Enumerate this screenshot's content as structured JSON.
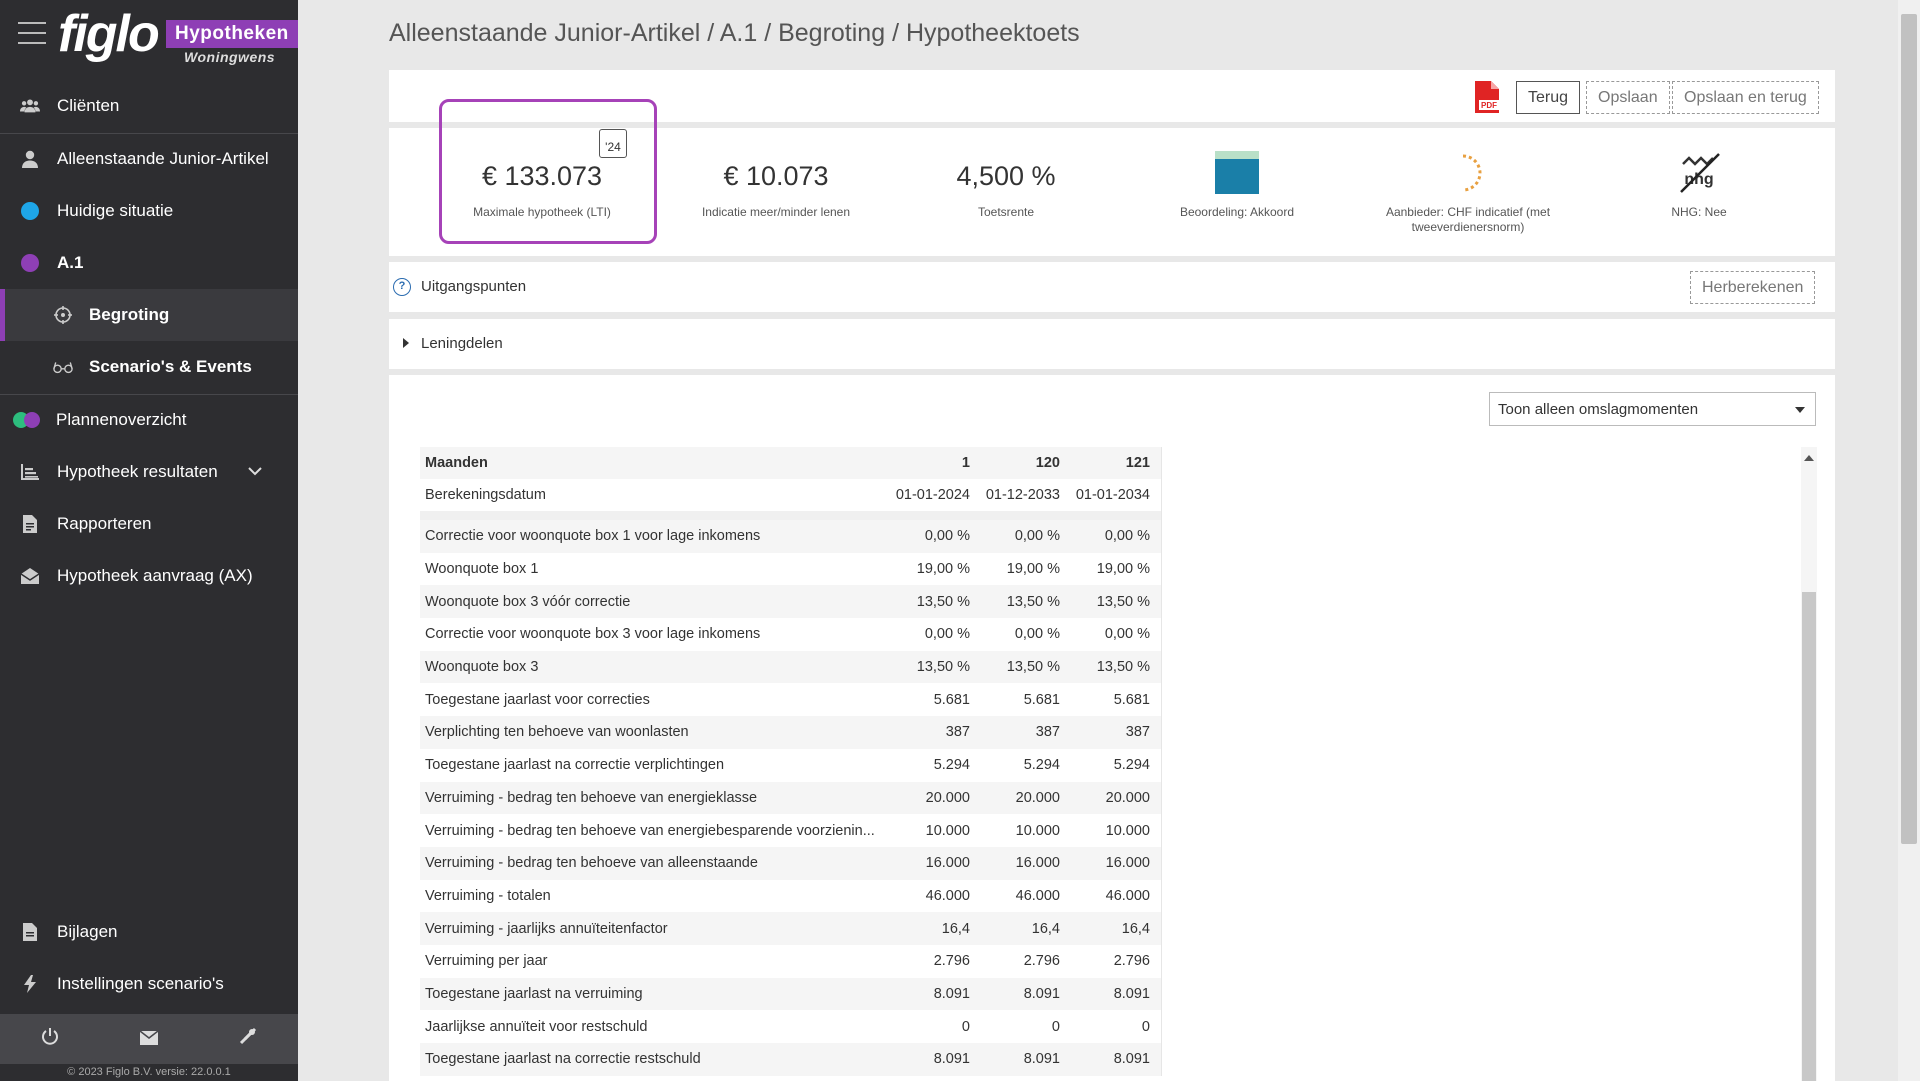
{
  "brand": {
    "logo": "figlo",
    "badge": "Hypotheken",
    "sub": "Woningwens"
  },
  "sidebar": {
    "items": [
      {
        "label": "Cliënten"
      },
      {
        "label": "Alleenstaande Junior-Artikel"
      },
      {
        "label": "Huidige situatie"
      },
      {
        "label": "A.1"
      },
      {
        "label": "Begroting"
      },
      {
        "label": "Scenario's & Events"
      },
      {
        "label": "Plannenoverzicht"
      },
      {
        "label": "Hypotheek resultaten"
      },
      {
        "label": "Rapporteren"
      },
      {
        "label": "Hypotheek aanvraag (AX)"
      },
      {
        "label": "Bijlagen"
      },
      {
        "label": "Instellingen scenario's"
      }
    ],
    "copyright": "© 2023 Figlo B.V. versie: 22.0.0.1"
  },
  "header": {
    "breadcrumb": "Alleenstaande Junior-Artikel / A.1 / Begroting / Hypotheektoets"
  },
  "toolbar": {
    "pdf": "PDF",
    "back_label": "Terug",
    "save_label": "Opslaan",
    "save_back_label": "Opslaan en terug"
  },
  "kpis": {
    "max": {
      "value": "€ 133.073",
      "label": "Maximale hypotheek (LTI)",
      "calendar": "'24"
    },
    "indicatie": {
      "value": "€ 10.073",
      "label": "Indicatie meer/minder lenen"
    },
    "toetsrente": {
      "value": "4,500 %",
      "label": "Toetsrente"
    },
    "beoordeling": {
      "label": "Beoordeling: Akkoord"
    },
    "aanbieder": {
      "label": "Aanbieder: CHF indicatief (met tweeverdienersnorm)"
    },
    "nhg": {
      "label": "NHG: Nee",
      "mark": "nhg"
    }
  },
  "uitgangspunten": {
    "label": "Uitgangspunten",
    "recalc_label": "Herberekenen"
  },
  "leningdelen": {
    "label": "Leningdelen"
  },
  "filter": {
    "selected": "Toon alleen omslagmomenten"
  },
  "table": {
    "header": {
      "label": "Maanden",
      "cols": [
        "1",
        "120",
        "121"
      ]
    },
    "dates": {
      "label": "Berekeningsdatum",
      "cols": [
        "01-01-2024",
        "01-12-2033",
        "01-01-2034"
      ]
    },
    "rows": [
      {
        "label": "Correctie voor woonquote box 1 voor lage inkomens",
        "v": [
          "0,00 %",
          "0,00 %",
          "0,00 %"
        ]
      },
      {
        "label": "Woonquote box 1",
        "v": [
          "19,00 %",
          "19,00 %",
          "19,00 %"
        ]
      },
      {
        "label": "Woonquote box 3 vóór correctie",
        "v": [
          "13,50 %",
          "13,50 %",
          "13,50 %"
        ]
      },
      {
        "label": "Correctie voor woonquote box 3 voor lage inkomens",
        "v": [
          "0,00 %",
          "0,00 %",
          "0,00 %"
        ]
      },
      {
        "label": "Woonquote box 3",
        "v": [
          "13,50 %",
          "13,50 %",
          "13,50 %"
        ]
      },
      {
        "label": "Toegestane jaarlast voor correcties",
        "v": [
          "5.681",
          "5.681",
          "5.681"
        ]
      },
      {
        "label": "Verplichting ten behoeve van woonlasten",
        "v": [
          "387",
          "387",
          "387"
        ]
      },
      {
        "label": "Toegestane jaarlast na correctie verplichtingen",
        "v": [
          "5.294",
          "5.294",
          "5.294"
        ]
      },
      {
        "label": "Verruiming - bedrag ten behoeve van energieklasse",
        "v": [
          "20.000",
          "20.000",
          "20.000"
        ]
      },
      {
        "label": "Verruiming - bedrag ten behoeve van energiebesparende voorzienin...",
        "v": [
          "10.000",
          "10.000",
          "10.000"
        ]
      },
      {
        "label": "Verruiming - bedrag ten behoeve van alleenstaande",
        "v": [
          "16.000",
          "16.000",
          "16.000"
        ]
      },
      {
        "label": "Verruiming - totalen",
        "v": [
          "46.000",
          "46.000",
          "46.000"
        ]
      },
      {
        "label": "Verruiming - jaarlijks annuïteitenfactor",
        "v": [
          "16,4",
          "16,4",
          "16,4"
        ]
      },
      {
        "label": "Verruiming per jaar",
        "v": [
          "2.796",
          "2.796",
          "2.796"
        ]
      },
      {
        "label": "Toegestane jaarlast na verruiming",
        "v": [
          "8.091",
          "8.091",
          "8.091"
        ]
      },
      {
        "label": "Jaarlijkse annuïteit voor restschuld",
        "v": [
          "0",
          "0",
          "0"
        ]
      },
      {
        "label": "Toegestane jaarlast na correctie restschuld",
        "v": [
          "8.091",
          "8.091",
          "8.091"
        ]
      }
    ]
  },
  "colors": {
    "accent": "#8e3fb5",
    "sidebar": "#2d2d30",
    "akkoord_top": "#b9e0c8",
    "akkoord_bottom": "#1a7fa8"
  }
}
